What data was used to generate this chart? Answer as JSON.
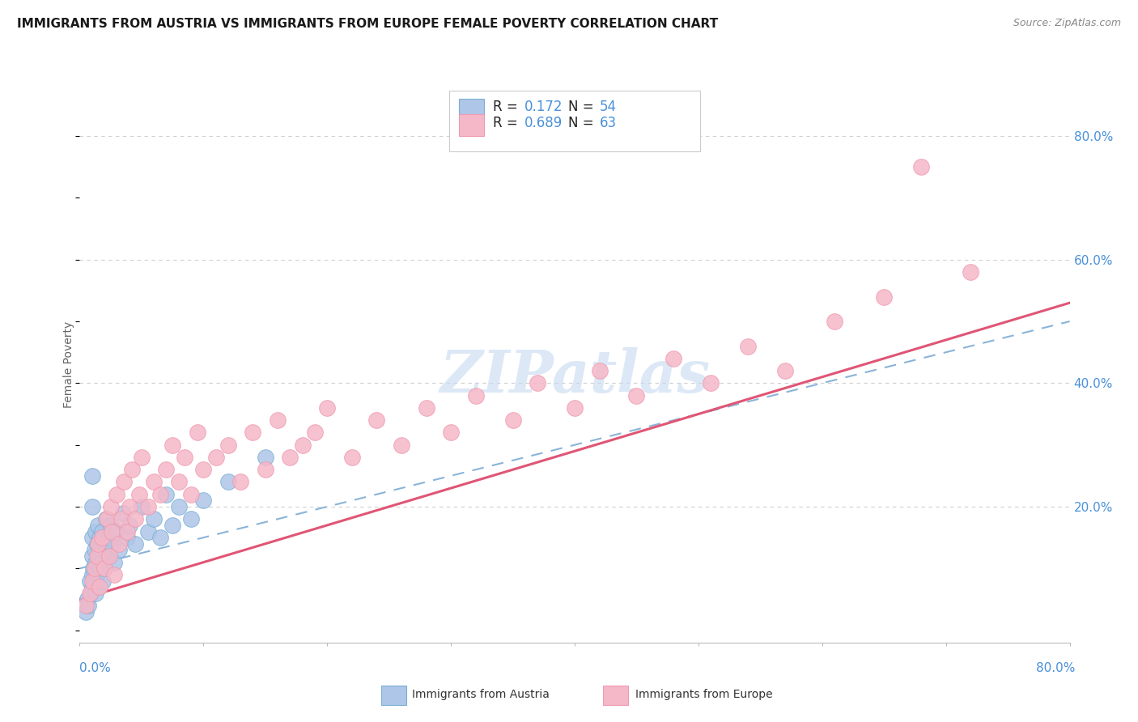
{
  "title": "IMMIGRANTS FROM AUSTRIA VS IMMIGRANTS FROM EUROPE FEMALE POVERTY CORRELATION CHART",
  "source": "Source: ZipAtlas.com",
  "ylabel": "Female Poverty",
  "right_yticks": [
    0.0,
    0.2,
    0.4,
    0.6,
    0.8
  ],
  "right_yticklabels": [
    "",
    "20.0%",
    "40.0%",
    "60.0%",
    "80.0%"
  ],
  "xlim": [
    0.0,
    0.8
  ],
  "ylim": [
    -0.02,
    0.88
  ],
  "legend_r1_label": "R = ",
  "legend_r1_val": "0.172",
  "legend_r1_n_label": "  N = ",
  "legend_r1_n_val": "54",
  "legend_r2_label": "R = ",
  "legend_r2_val": "0.689",
  "legend_r2_n_label": "  N = ",
  "legend_r2_n_val": "63",
  "color_austria_fill": "#aec6e8",
  "color_austria_edge": "#7bafd4",
  "color_austria_line": "#5b8fc4",
  "color_europe_fill": "#f5b8c8",
  "color_europe_edge": "#f09aae",
  "color_europe_line": "#e05575",
  "color_trendline_austria": "#8ab4d8",
  "watermark_color": "#c5daf0",
  "background_color": "#ffffff",
  "blue_label_color": "#4a90d9",
  "austria_x": [
    0.005,
    0.006,
    0.007,
    0.008,
    0.009,
    0.01,
    0.01,
    0.01,
    0.01,
    0.01,
    0.01,
    0.011,
    0.012,
    0.012,
    0.013,
    0.013,
    0.013,
    0.014,
    0.014,
    0.015,
    0.015,
    0.015,
    0.016,
    0.016,
    0.017,
    0.018,
    0.018,
    0.019,
    0.02,
    0.02,
    0.021,
    0.022,
    0.023,
    0.024,
    0.025,
    0.026,
    0.028,
    0.03,
    0.032,
    0.035,
    0.038,
    0.04,
    0.045,
    0.05,
    0.055,
    0.06,
    0.065,
    0.07,
    0.075,
    0.08,
    0.09,
    0.1,
    0.12,
    0.15
  ],
  "austria_y": [
    0.03,
    0.05,
    0.04,
    0.08,
    0.06,
    0.12,
    0.09,
    0.15,
    0.07,
    0.2,
    0.25,
    0.1,
    0.13,
    0.08,
    0.16,
    0.11,
    0.06,
    0.14,
    0.09,
    0.17,
    0.12,
    0.07,
    0.15,
    0.1,
    0.13,
    0.16,
    0.11,
    0.08,
    0.14,
    0.1,
    0.18,
    0.13,
    0.15,
    0.12,
    0.17,
    0.14,
    0.11,
    0.16,
    0.13,
    0.19,
    0.15,
    0.17,
    0.14,
    0.2,
    0.16,
    0.18,
    0.15,
    0.22,
    0.17,
    0.2,
    0.18,
    0.21,
    0.24,
    0.28
  ],
  "europe_x": [
    0.005,
    0.008,
    0.01,
    0.012,
    0.014,
    0.015,
    0.016,
    0.018,
    0.02,
    0.022,
    0.024,
    0.025,
    0.026,
    0.028,
    0.03,
    0.032,
    0.034,
    0.036,
    0.038,
    0.04,
    0.042,
    0.045,
    0.048,
    0.05,
    0.055,
    0.06,
    0.065,
    0.07,
    0.075,
    0.08,
    0.085,
    0.09,
    0.095,
    0.1,
    0.11,
    0.12,
    0.13,
    0.14,
    0.15,
    0.16,
    0.17,
    0.18,
    0.19,
    0.2,
    0.22,
    0.24,
    0.26,
    0.28,
    0.3,
    0.32,
    0.35,
    0.37,
    0.4,
    0.42,
    0.45,
    0.48,
    0.51,
    0.54,
    0.57,
    0.61,
    0.65,
    0.68,
    0.72
  ],
  "europe_y": [
    0.04,
    0.06,
    0.08,
    0.1,
    0.12,
    0.14,
    0.07,
    0.15,
    0.1,
    0.18,
    0.12,
    0.2,
    0.16,
    0.09,
    0.22,
    0.14,
    0.18,
    0.24,
    0.16,
    0.2,
    0.26,
    0.18,
    0.22,
    0.28,
    0.2,
    0.24,
    0.22,
    0.26,
    0.3,
    0.24,
    0.28,
    0.22,
    0.32,
    0.26,
    0.28,
    0.3,
    0.24,
    0.32,
    0.26,
    0.34,
    0.28,
    0.3,
    0.32,
    0.36,
    0.28,
    0.34,
    0.3,
    0.36,
    0.32,
    0.38,
    0.34,
    0.4,
    0.36,
    0.42,
    0.38,
    0.44,
    0.4,
    0.46,
    0.42,
    0.5,
    0.54,
    0.75,
    0.58
  ],
  "austria_trendline_x": [
    0.0,
    0.8
  ],
  "austria_trendline_y": [
    0.1,
    0.5
  ],
  "europe_trendline_x": [
    0.0,
    0.8
  ],
  "europe_trendline_y": [
    0.05,
    0.53
  ]
}
